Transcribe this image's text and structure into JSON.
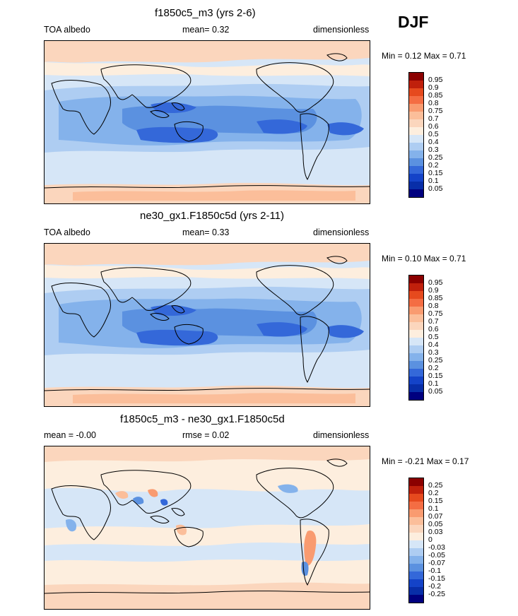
{
  "season": "DJF",
  "panels": [
    {
      "title": "f1850c5_m3 (yrs 2-6)",
      "left_label": "TOA albedo",
      "center_label": "mean=  0.32",
      "right_label": "dimensionless",
      "minmax": "Min =  0.12 Max =  0.71",
      "kind": "abs",
      "colorbar": {
        "labels": [
          "0.95",
          "0.9",
          "0.85",
          "0.8",
          "0.75",
          "0.7",
          "0.6",
          "0.5",
          "0.4",
          "0.3",
          "0.25",
          "0.2",
          "0.15",
          "0.1",
          "0.05"
        ],
        "colors": [
          "#8b0000",
          "#c0200c",
          "#e64a1e",
          "#f46d43",
          "#f99b70",
          "#fbbe9a",
          "#fbd6bd",
          "#fdeede",
          "#d6e6f7",
          "#aecdf2",
          "#84b2eb",
          "#5b91e0",
          "#3468d9",
          "#1443c8",
          "#082ea8",
          "#00007f"
        ]
      }
    },
    {
      "title": "ne30_gx1.F1850c5d (yrs 2-11)",
      "left_label": "TOA albedo",
      "center_label": "mean=  0.33",
      "right_label": "dimensionless",
      "minmax": "Min =  0.10 Max =  0.71",
      "kind": "abs",
      "colorbar": {
        "labels": [
          "0.95",
          "0.9",
          "0.85",
          "0.8",
          "0.75",
          "0.7",
          "0.6",
          "0.5",
          "0.4",
          "0.3",
          "0.25",
          "0.2",
          "0.15",
          "0.1",
          "0.05"
        ],
        "colors": [
          "#8b0000",
          "#c0200c",
          "#e64a1e",
          "#f46d43",
          "#f99b70",
          "#fbbe9a",
          "#fbd6bd",
          "#fdeede",
          "#d6e6f7",
          "#aecdf2",
          "#84b2eb",
          "#5b91e0",
          "#3468d9",
          "#1443c8",
          "#082ea8",
          "#00007f"
        ]
      }
    },
    {
      "title": "f1850c5_m3 - ne30_gx1.F1850c5d",
      "left_label": "mean =  -0.00",
      "center_label": "rmse =  0.02",
      "right_label": "dimensionless",
      "minmax": "Min =  -0.21 Max =  0.17",
      "kind": "diff",
      "colorbar": {
        "labels": [
          "0.25",
          "0.2",
          "0.15",
          "0.1",
          "0.07",
          "0.05",
          "0.03",
          "0",
          "-0.03",
          "-0.05",
          "-0.07",
          "-0.1",
          "-0.15",
          "-0.2",
          "-0.25"
        ],
        "colors": [
          "#8b0000",
          "#c0200c",
          "#e64a1e",
          "#f46d43",
          "#f99b70",
          "#fbbe9a",
          "#fbd6bd",
          "#fdeede",
          "#d6e6f7",
          "#aecdf2",
          "#84b2eb",
          "#5b91e0",
          "#3468d9",
          "#1443c8",
          "#082ea8",
          "#00007f"
        ]
      }
    }
  ]
}
